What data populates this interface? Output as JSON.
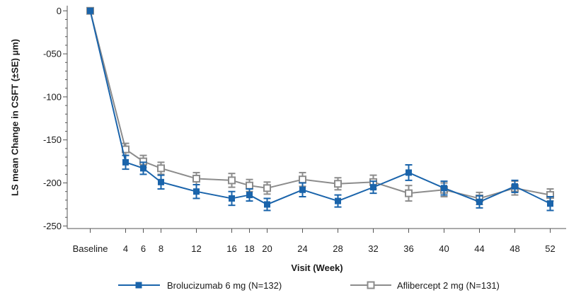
{
  "chart_data": {
    "type": "line",
    "xlabel": "Visit (Week)",
    "ylabel": "LS mean Change in CSFT (±SE) µm)",
    "x": [
      0,
      4,
      6,
      8,
      12,
      16,
      18,
      20,
      24,
      28,
      32,
      36,
      40,
      44,
      48,
      52
    ],
    "xticklabels": [
      "Baseline",
      "4",
      "6",
      "8",
      "12",
      "16",
      "18",
      "20",
      "24",
      "28",
      "32",
      "36",
      "40",
      "44",
      "48",
      "52"
    ],
    "yticks": [
      0,
      -50,
      -100,
      -150,
      -200,
      -250
    ],
    "yticklabels": [
      "0",
      "-050",
      "-100",
      "-150",
      "-200",
      "-250"
    ],
    "xlim": [
      -2.6,
      53.8
    ],
    "ylim": [
      -253,
      6
    ],
    "grid": false,
    "legend": "bottom",
    "series": [
      {
        "name": "Brolucizumab 6 mg (N=132)",
        "color": "#1a64ab",
        "filled": true,
        "values": [
          0,
          -176,
          -183,
          -199,
          -210,
          -218,
          -214,
          -225,
          -208,
          -221,
          -205,
          -188,
          -206,
          -222,
          -204,
          -224
        ],
        "se": [
          0,
          8,
          7,
          8,
          8,
          8,
          7,
          7,
          8,
          7,
          7,
          9,
          8,
          7,
          7,
          8
        ]
      },
      {
        "name": "Aflibercept 2 mg (N=131)",
        "color": "#8c8c8c",
        "filled": false,
        "values": [
          0,
          -161,
          -175,
          -183,
          -195,
          -197,
          -203,
          -206,
          -196,
          -201,
          -199,
          -212,
          -208,
          -218,
          -206,
          -214
        ],
        "se": [
          0,
          7,
          7,
          7,
          7,
          8,
          7,
          7,
          8,
          7,
          8,
          9,
          8,
          7,
          8,
          7
        ]
      }
    ]
  }
}
